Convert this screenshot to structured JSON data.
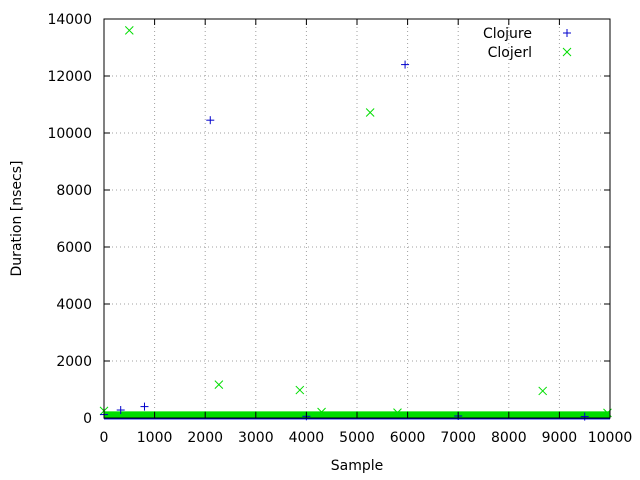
{
  "chart_data": {
    "type": "scatter",
    "title": "",
    "xlabel": "Sample",
    "ylabel": "Duration [nsecs]",
    "xlim": [
      0,
      10000
    ],
    "ylim": [
      0,
      14000
    ],
    "x_ticks": [
      0,
      1000,
      2000,
      3000,
      4000,
      5000,
      6000,
      7000,
      8000,
      9000,
      10000
    ],
    "y_ticks": [
      0,
      2000,
      4000,
      6000,
      8000,
      10000,
      12000,
      14000
    ],
    "grid": true,
    "legend_position": "top-right",
    "series": [
      {
        "name": "Clojure",
        "marker": "plus",
        "color": "#0000cc",
        "baseline": 20,
        "points": [
          [
            0,
            120
          ],
          [
            330,
            280
          ],
          [
            800,
            400
          ],
          [
            2100,
            10450
          ],
          [
            5950,
            12400
          ],
          [
            4000,
            60
          ],
          [
            7000,
            70
          ],
          [
            9500,
            50
          ]
        ]
      },
      {
        "name": "Clojerl",
        "marker": "cross",
        "color": "#00dd00",
        "baseline": 110,
        "points": [
          [
            0,
            250
          ],
          [
            500,
            13600
          ],
          [
            2270,
            1170
          ],
          [
            3870,
            980
          ],
          [
            5260,
            10720
          ],
          [
            8670,
            950
          ],
          [
            4300,
            210
          ],
          [
            5800,
            190
          ],
          [
            9950,
            180
          ]
        ]
      }
    ]
  }
}
